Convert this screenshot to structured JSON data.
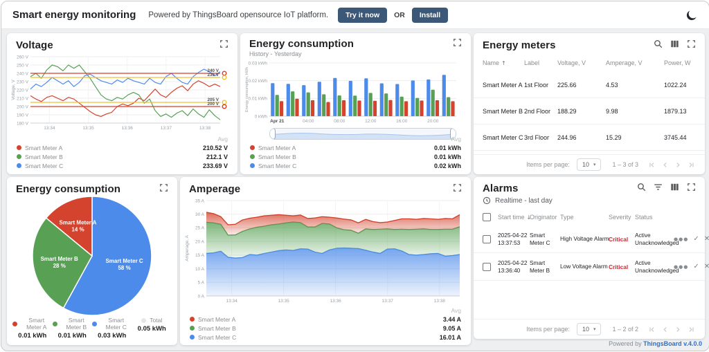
{
  "header": {
    "title": "Smart energy monitoring",
    "subtitle": "Powered by ThingsBoard opensource IoT platform.",
    "try_button": "Try it now",
    "or_label": "OR",
    "install_button": "Install",
    "icons": [
      "moon-icon"
    ]
  },
  "colors": {
    "meter_a": "#d3432d",
    "meter_b": "#57a054",
    "meter_c": "#4d8bea",
    "threshold_red": "#da3b2b",
    "threshold_yellow": "#f1c12f",
    "critical": "#d12730",
    "button": "#3b5878",
    "link": "#2d6fce",
    "total_dot": "#e4e6e8"
  },
  "widgets": {
    "voltage": {
      "title": "Voltage",
      "icons": [
        "fullscreen-icon"
      ],
      "legend_header": "Avg",
      "legend": [
        {
          "label": "Smart Meter A",
          "value": "210.52 V"
        },
        {
          "label": "Smart Meter B",
          "value": "212.1 V"
        },
        {
          "label": "Smart Meter C",
          "value": "233.69 V"
        }
      ]
    },
    "energy_bars": {
      "title": "Energy consumption",
      "subtitle": "History - Yesterday",
      "icons": [
        "fullscreen-icon"
      ],
      "legend_header": "Avg",
      "legend": [
        {
          "label": "Smart Meter A",
          "value": "0.01 kWh"
        },
        {
          "label": "Smart Meter B",
          "value": "0.01 kWh"
        },
        {
          "label": "Smart Meter C",
          "value": "0.02 kWh"
        }
      ]
    },
    "energy_meters": {
      "title": "Energy meters",
      "icons": [
        "search-icon",
        "columns-icon",
        "fullscreen-icon"
      ],
      "columns": [
        "Name",
        "Label",
        "Voltage, V",
        "Amperage, V",
        "Power, W"
      ],
      "sort_column": "Name",
      "rows": [
        [
          "Smart Meter A",
          "1st Floor",
          "225.66",
          "4.53",
          "1022.24"
        ],
        [
          "Smart Meter B",
          "2nd Floor",
          "188.29",
          "9.98",
          "1879.13"
        ],
        [
          "Smart Meter C",
          "3rd Floor",
          "244.96",
          "15.29",
          "3745.44"
        ]
      ],
      "pagination": {
        "items_per_page_label": "Items per page:",
        "page_size": "10",
        "range": "1 – 3 of 3"
      }
    },
    "energy_pie": {
      "title": "Energy consumption",
      "icons": [
        "fullscreen-icon"
      ],
      "legend": [
        {
          "label": "Smart Meter A",
          "value": "0.01 kWh"
        },
        {
          "label": "Smart Meter B",
          "value": "0.01 kWh"
        },
        {
          "label": "Smart Meter C",
          "value": "0.03 kWh"
        },
        {
          "label": "Total",
          "value": "0.05 kWh"
        }
      ]
    },
    "amperage": {
      "title": "Amperage",
      "icons": [
        "fullscreen-icon"
      ],
      "legend_header": "Avg",
      "legend": [
        {
          "label": "Smart Meter A",
          "value": "3.44 A"
        },
        {
          "label": "Smart Meter B",
          "value": "9.05 A"
        },
        {
          "label": "Smart Meter C",
          "value": "16.01 A"
        }
      ]
    },
    "alarms": {
      "title": "Alarms",
      "icons": [
        "search-icon",
        "filter-icon",
        "columns-icon",
        "fullscreen-icon"
      ],
      "timewindow": "Realtime - last day",
      "columns": [
        "Start time",
        "Originator",
        "Type",
        "Severity",
        "Status"
      ],
      "sort_column": "Start time",
      "rows": [
        {
          "start_time": "2025-04-22 13:37:53",
          "originator": "Smart Meter C",
          "type": "High Voltage Alarm",
          "severity": "Critical",
          "status": "Active Unacknowledged"
        },
        {
          "start_time": "2025-04-22 13:36:40",
          "originator": "Smart Meter B",
          "type": "Low Voltage Alarm",
          "severity": "Critical",
          "status": "Active Unacknowledged"
        }
      ],
      "pagination": {
        "items_per_page_label": "Items per page:",
        "page_size": "10",
        "range": "1 – 2 of 2"
      }
    }
  },
  "footer": {
    "powered_by": "Powered by",
    "link_label": "ThingsBoard v.4.0.0"
  },
  "chart_data": [
    {
      "id": "voltage",
      "type": "line",
      "title": "Voltage",
      "ylabel": "Voltage, V",
      "ylim": [
        180,
        260
      ],
      "ystep": 10,
      "yticks": [
        "180 V",
        "190 V",
        "200 V",
        "210 V",
        "220 V",
        "230 V",
        "240 V",
        "250 V",
        "260 V"
      ],
      "xticks": [
        "13:34",
        "13:35",
        "13:36",
        "13:37",
        "13:38"
      ],
      "thresholds": [
        {
          "value": 240,
          "label": "240 V",
          "color": "#da3b2b"
        },
        {
          "value": 235,
          "label": "235 V",
          "color": "#f1c12f"
        },
        {
          "value": 205,
          "label": "205 V",
          "color": "#f1c12f"
        },
        {
          "value": 200,
          "label": "200 V",
          "color": "#da3b2b"
        }
      ],
      "series": [
        {
          "name": "Smart Meter A",
          "color": "#d3432d",
          "values": [
            213,
            209,
            206,
            211,
            213,
            210,
            207,
            211,
            209,
            204,
            199,
            194,
            190,
            188,
            191,
            193,
            200,
            203,
            201,
            204,
            210,
            207,
            214,
            221,
            214,
            211,
            217,
            222,
            225,
            219,
            227,
            231,
            228,
            224,
            227,
            224
          ]
        },
        {
          "name": "Smart Meter B",
          "color": "#57a054",
          "values": [
            236,
            240,
            234,
            244,
            250,
            248,
            243,
            250,
            246,
            250,
            242,
            234,
            224,
            214,
            209,
            207,
            211,
            209,
            214,
            217,
            214,
            204,
            209,
            195,
            188,
            191,
            187,
            192,
            195,
            189,
            197,
            191,
            187,
            196,
            189,
            184
          ]
        },
        {
          "name": "Smart Meter C",
          "color": "#4d8bea",
          "values": [
            221,
            227,
            224,
            229,
            235,
            231,
            227,
            231,
            224,
            229,
            237,
            239,
            235,
            231,
            229,
            227,
            232,
            229,
            234,
            231,
            229,
            227,
            234,
            229,
            227,
            236,
            240,
            234,
            229,
            227,
            236,
            241,
            245,
            242,
            237,
            242
          ]
        }
      ]
    },
    {
      "id": "energy_bars",
      "type": "bar",
      "title": "Energy consumption",
      "ylabel": "Energy consumption, kWh",
      "ylim": [
        0,
        0.03
      ],
      "yticks": [
        "0 kWh",
        "0.01 kWh",
        "0.02 kWh",
        "0.03 kWh"
      ],
      "xticks": [
        "Apr 21",
        "04:00",
        "08:00",
        "12:00",
        "16:00",
        "20:00"
      ],
      "series": [
        {
          "name": "Smart Meter C",
          "color": "#4d8bea",
          "values": [
            0.0186,
            0.0182,
            0.0175,
            0.0194,
            0.0215,
            0.0199,
            0.0213,
            0.0185,
            0.0181,
            0.0201,
            0.0207,
            0.0233
          ]
        },
        {
          "name": "Smart Meter B",
          "color": "#57a054",
          "values": [
            0.012,
            0.014,
            0.0134,
            0.0123,
            0.0117,
            0.0116,
            0.0131,
            0.0128,
            0.011,
            0.0103,
            0.0149,
            0.0107
          ]
        },
        {
          "name": "Smart Meter A",
          "color": "#d3432d",
          "values": [
            0.0085,
            0.0098,
            0.009,
            0.008,
            0.009,
            0.0088,
            0.0087,
            0.0091,
            0.0084,
            0.0088,
            0.009,
            0.0084
          ]
        }
      ]
    },
    {
      "id": "energy_pie",
      "type": "pie",
      "title": "Energy consumption",
      "start": "top",
      "direction": "clockwise",
      "slices": [
        {
          "name": "Smart Meter C",
          "percent": 58,
          "value": "0.03 kWh",
          "color": "#4d8bea"
        },
        {
          "name": "Smart Meter B",
          "percent": 28,
          "value": "0.01 kWh",
          "color": "#57a054"
        },
        {
          "name": "Smart Meter A",
          "percent": 14,
          "value": "0.01 kWh",
          "color": "#d3432d"
        }
      ],
      "total": "0.05 kWh"
    },
    {
      "id": "amperage",
      "type": "area",
      "stacked": true,
      "title": "Amperage",
      "ylabel": "Amperage, A",
      "ylim": [
        0,
        35
      ],
      "ystep": 5,
      "yticks": [
        "0 A",
        "5 A",
        "10 A",
        "15 A",
        "20 A",
        "25 A",
        "30 A",
        "35 A"
      ],
      "xticks": [
        "13:34",
        "13:35",
        "13:36",
        "13:37",
        "13:38"
      ],
      "series": [
        {
          "name": "Smart Meter C",
          "color": "#4d8bea",
          "values": [
            15.6,
            15.8,
            16.4,
            14.2,
            13.9,
            14.1,
            15.2,
            15.0,
            15.6,
            16.1,
            16.6,
            16.9,
            16.7,
            17.3,
            17.2,
            16.1,
            15.6,
            16.9,
            17.5,
            17.6,
            17.5,
            17.4,
            16.8,
            16.1,
            15.6,
            17.2,
            17.3,
            16.5,
            15.2,
            15.0,
            15.2,
            15.5,
            15.6,
            14.6,
            14.8,
            15.2
          ]
        },
        {
          "name": "Smart Meter B",
          "color": "#57a054",
          "values": [
            11.4,
            11.0,
            9.9,
            8.1,
            8.5,
            9.6,
            9.4,
            10.2,
            10.0,
            10.0,
            9.8,
            9.9,
            10.4,
            9.6,
            8.1,
            9.2,
            11.0,
            9.5,
            7.5,
            6.7,
            6.6,
            5.6,
            7.8,
            8.3,
            8.9,
            7.4,
            7.1,
            8.0,
            9.2,
            9.5,
            9.4,
            8.9,
            8.8,
            9.9,
            9.7,
            10.2
          ]
        },
        {
          "name": "Smart Meter A",
          "color": "#d3432d",
          "values": [
            3.7,
            3.4,
            2.8,
            3.8,
            3.9,
            4.2,
            3.9,
            3.7,
            3.8,
            3.5,
            3.4,
            2.8,
            2.3,
            2.8,
            3.1,
            3.3,
            2.5,
            2.5,
            3.6,
            3.9,
            3.8,
            3.8,
            3.5,
            2.9,
            2.4,
            2.5,
            3.3,
            3.8,
            3.9,
            3.6,
            3.8,
            3.9,
            3.7,
            3.9,
            3.8,
            4.4
          ]
        }
      ]
    }
  ]
}
